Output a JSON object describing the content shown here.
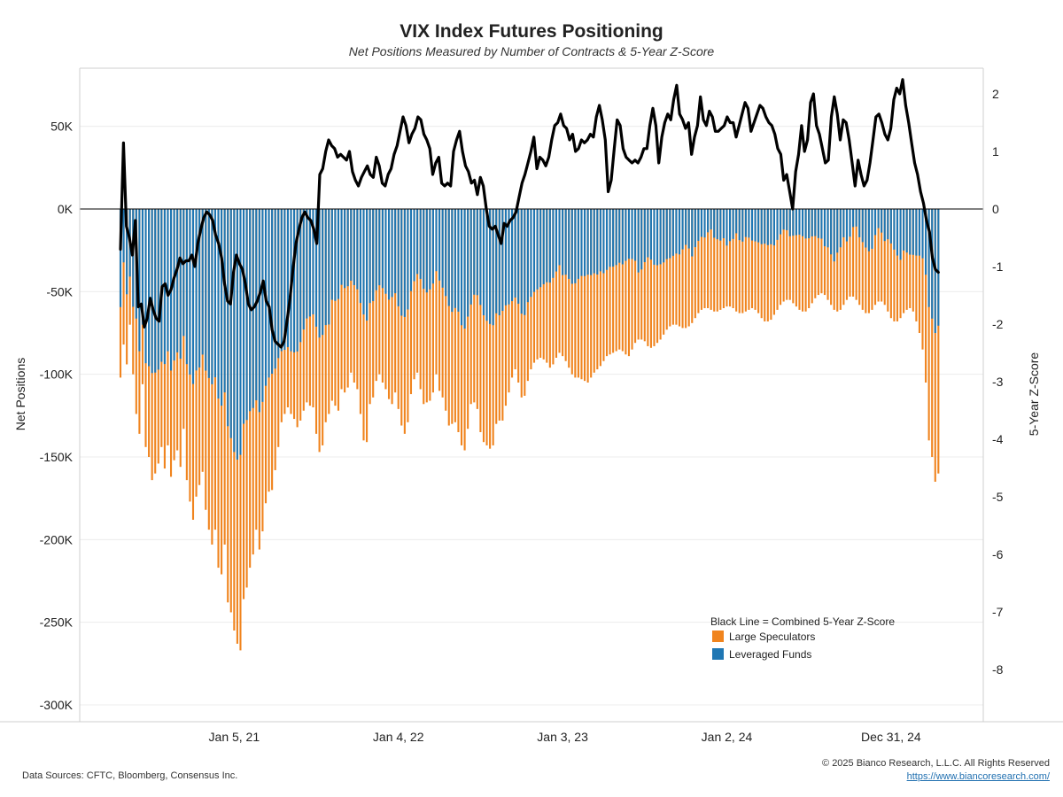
{
  "chart_data": {
    "type": "bar",
    "title": "VIX Index Futures Positioning",
    "subtitle": "Net Positions Measured by Number of Contracts  & 5-Year Z-Score",
    "ylabel": "Net Positions",
    "y2label": "5-Year Z-Score",
    "ylim": [
      -300000,
      80000
    ],
    "y2lim": [
      -8.7,
      2.2
    ],
    "y_ticks": [
      {
        "value": 50000,
        "label": "50K"
      },
      {
        "value": 0,
        "label": "0K"
      },
      {
        "value": -50000,
        "label": "-50K"
      },
      {
        "value": -100000,
        "label": "-100K"
      },
      {
        "value": -150000,
        "label": "-150K"
      },
      {
        "value": -200000,
        "label": "-200K"
      },
      {
        "value": -250000,
        "label": "-250K"
      },
      {
        "value": -300000,
        "label": "-300K"
      }
    ],
    "y2_ticks": [
      {
        "value": 2,
        "label": "2"
      },
      {
        "value": 1,
        "label": "1"
      },
      {
        "value": 0,
        "label": "0"
      },
      {
        "value": -1,
        "label": "-1"
      },
      {
        "value": -2,
        "label": "-2"
      },
      {
        "value": -3,
        "label": "-3"
      },
      {
        "value": -4,
        "label": "-4"
      },
      {
        "value": -5,
        "label": "-5"
      },
      {
        "value": -6,
        "label": "-6"
      },
      {
        "value": -7,
        "label": "-7"
      },
      {
        "value": -8,
        "label": "-8"
      }
    ],
    "x_ticks": [
      "Jan 5, 21",
      "Jan 4, 22",
      "Jan 3, 23",
      "Jan 2, 24",
      "Dec 31, 24"
    ],
    "x_tick_index": [
      36,
      88,
      140,
      192,
      244
    ],
    "grid": true,
    "legend_position": "bottom-right",
    "legend_title": "Black Line = Combined 5-Year Z-Score",
    "series": [
      {
        "name": "Large Speculators",
        "type": "bar",
        "color": "#F0841E",
        "values": [
          -102000,
          -82000,
          -94000,
          -70000,
          -100000,
          -124000,
          -136000,
          -106000,
          -144000,
          -150000,
          -164000,
          -160000,
          -154000,
          -144000,
          -157000,
          -143000,
          -162000,
          -152000,
          -146000,
          -156000,
          -133000,
          -164000,
          -177000,
          -188000,
          -174000,
          -167000,
          -159000,
          -182000,
          -194000,
          -203000,
          -194000,
          -217000,
          -221000,
          -203000,
          -238000,
          -244000,
          -255000,
          -263000,
          -267000,
          -236000,
          -229000,
          -217000,
          -209000,
          -194000,
          -206000,
          -195000,
          -178000,
          -171000,
          -170000,
          -158000,
          -144000,
          -129000,
          -124000,
          -120000,
          -124000,
          -127000,
          -132000,
          -128000,
          -122000,
          -117000,
          -119000,
          -120000,
          -136000,
          -147000,
          -143000,
          -129000,
          -124000,
          -116000,
          -119000,
          -122000,
          -109000,
          -111000,
          -108000,
          -99000,
          -105000,
          -109000,
          -124000,
          -140000,
          -141000,
          -118000,
          -114000,
          -104000,
          -100000,
          -105000,
          -109000,
          -115000,
          -118000,
          -111000,
          -121000,
          -131000,
          -136000,
          -129000,
          -112000,
          -103000,
          -99000,
          -109000,
          -118000,
          -117000,
          -116000,
          -111000,
          -100000,
          -110000,
          -114000,
          -122000,
          -131000,
          -130000,
          -129000,
          -135000,
          -143000,
          -146000,
          -133000,
          -118000,
          -117000,
          -121000,
          -135000,
          -141000,
          -143000,
          -145000,
          -143000,
          -130000,
          -128000,
          -128000,
          -119000,
          -111000,
          -102000,
          -97000,
          -105000,
          -114000,
          -113000,
          -104000,
          -97000,
          -93000,
          -91000,
          -90000,
          -91000,
          -93000,
          -96000,
          -94000,
          -90000,
          -87000,
          -89000,
          -92000,
          -96000,
          -100000,
          -102000,
          -102000,
          -103000,
          -104000,
          -105000,
          -102000,
          -99000,
          -97000,
          -95000,
          -92000,
          -89000,
          -88000,
          -87000,
          -86000,
          -85000,
          -86000,
          -88000,
          -89000,
          -85000,
          -81000,
          -79000,
          -79000,
          -80000,
          -83000,
          -84000,
          -83000,
          -81000,
          -79000,
          -76000,
          -73000,
          -71000,
          -70000,
          -70000,
          -71000,
          -72000,
          -72000,
          -71000,
          -69000,
          -66000,
          -63000,
          -61000,
          -60000,
          -60000,
          -61000,
          -62000,
          -62000,
          -61000,
          -60000,
          -59000,
          -59000,
          -60000,
          -62000,
          -63000,
          -63000,
          -62000,
          -61000,
          -60000,
          -61000,
          -63000,
          -66000,
          -68000,
          -68000,
          -67000,
          -64000,
          -61000,
          -58000,
          -56000,
          -55000,
          -55000,
          -57000,
          -59000,
          -61000,
          -62000,
          -62000,
          -60000,
          -57000,
          -54000,
          -52000,
          -51000,
          -52000,
          -55000,
          -58000,
          -61000,
          -62000,
          -61000,
          -58000,
          -55000,
          -53000,
          -53000,
          -55000,
          -58000,
          -61000,
          -63000,
          -63000,
          -61000,
          -58000,
          -56000,
          -56000,
          -58000,
          -62000,
          -66000,
          -68000,
          -68000,
          -66000,
          -63000,
          -61000,
          -60000,
          -62000,
          -68000,
          -75000,
          -85000,
          -105000,
          -140000,
          -150000,
          -165000,
          -160000
        ]
      },
      {
        "name": "Leveraged Funds",
        "type": "bar",
        "color": "#1F77B4"
      },
      {
        "name": "Combined 5-Year Z-Score",
        "type": "line",
        "axis": "right",
        "color": "#000000",
        "values": [
          -0.7,
          1.15,
          -0.3,
          -0.5,
          -0.8,
          -0.2,
          -1.7,
          -1.65,
          -2.05,
          -1.9,
          -1.55,
          -1.75,
          -1.9,
          -1.95,
          -1.35,
          -1.3,
          -1.5,
          -1.4,
          -1.2,
          -1.05,
          -0.85,
          -0.95,
          -0.9,
          -0.9,
          -0.8,
          -1.0,
          -0.6,
          -0.35,
          -0.15,
          -0.05,
          -0.1,
          -0.2,
          -0.45,
          -0.6,
          -0.85,
          -1.3,
          -1.6,
          -1.65,
          -1.1,
          -0.8,
          -0.95,
          -1.05,
          -1.3,
          -1.65,
          -1.75,
          -1.7,
          -1.6,
          -1.45,
          -1.25,
          -1.6,
          -1.7,
          -2.1,
          -2.3,
          -2.35,
          -2.4,
          -2.3,
          -1.95,
          -1.55,
          -1.05,
          -0.6,
          -0.35,
          -0.15,
          -0.05,
          -0.15,
          -0.2,
          -0.35,
          -0.6,
          0.6,
          0.7,
          1.0,
          1.2,
          1.1,
          1.05,
          0.9,
          0.95,
          0.9,
          0.85,
          1.0,
          0.65,
          0.5,
          0.4,
          0.55,
          0.65,
          0.75,
          0.6,
          0.55,
          0.9,
          0.75,
          0.45,
          0.4,
          0.6,
          0.7,
          0.95,
          1.1,
          1.35,
          1.6,
          1.45,
          1.15,
          1.3,
          1.4,
          1.6,
          1.55,
          1.3,
          1.2,
          1.05,
          0.6,
          0.8,
          0.9,
          0.45,
          0.4,
          0.45,
          0.4,
          1.0,
          1.2,
          1.35,
          1.0,
          0.75,
          0.65,
          0.45,
          0.5,
          0.25,
          0.55,
          0.4,
          0.0,
          -0.3,
          -0.35,
          -0.3,
          -0.45,
          -0.6,
          -0.25,
          -0.3,
          -0.2,
          -0.15,
          -0.05,
          0.2,
          0.45,
          0.6,
          0.8,
          1.0,
          1.25,
          0.7,
          0.9,
          0.85,
          0.75,
          0.9,
          1.2,
          1.45,
          1.5,
          1.65,
          1.45,
          1.4,
          1.2,
          1.3,
          1.0,
          1.05,
          1.2,
          1.15,
          1.2,
          1.3,
          1.25,
          1.6,
          1.8,
          1.55,
          1.2,
          0.3,
          0.5,
          1.05,
          1.55,
          1.45,
          1.05,
          0.9,
          0.85,
          0.8,
          0.85,
          0.8,
          0.9,
          1.05,
          1.05,
          1.45,
          1.75,
          1.45,
          0.8,
          1.25,
          1.5,
          1.65,
          1.55,
          1.9,
          2.15,
          1.65,
          1.55,
          1.4,
          1.5,
          0.95,
          1.25,
          1.45,
          1.95,
          1.55,
          1.45,
          1.7,
          1.6,
          1.35,
          1.35,
          1.4,
          1.45,
          1.6,
          1.5,
          1.5,
          1.25,
          1.45,
          1.65,
          1.85,
          1.75,
          1.35,
          1.5,
          1.65,
          1.8,
          1.75,
          1.6,
          1.5,
          1.45,
          1.3,
          1.05,
          0.95,
          0.5,
          0.6,
          0.3,
          0.0,
          0.65,
          0.95,
          1.45,
          1.0,
          1.2,
          1.85,
          2.0,
          1.45,
          1.3,
          1.05,
          0.8,
          0.85,
          1.6,
          1.95,
          1.65,
          1.2,
          1.55,
          1.5,
          1.2,
          0.8,
          0.4,
          0.85,
          0.6,
          0.4,
          0.5,
          0.8,
          1.2,
          1.6,
          1.65,
          1.5,
          1.3,
          1.2,
          1.4,
          1.9,
          2.1,
          2.0,
          2.25,
          1.8,
          1.5,
          1.15,
          0.8,
          0.6,
          0.3,
          0.1,
          -0.2,
          -0.4,
          -0.85,
          -1.05,
          -1.1
        ]
      }
    ]
  },
  "footer": {
    "sources": "Data Sources: CFTC, Bloomberg, Consensus Inc.",
    "copyright": "© 2025 Bianco Research, L.L.C. All Rights Reserved",
    "url": "https://www.biancoresearch.com/"
  }
}
